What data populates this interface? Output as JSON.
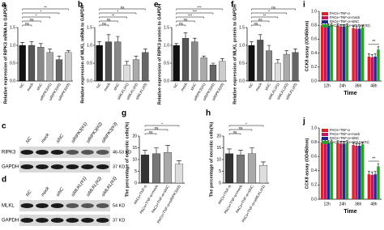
{
  "chart_data": [
    {
      "type": "bar",
      "panel": "a",
      "ylabel": "Relative expression of RIPK3 mRNA to GAPDH",
      "categories": [
        "NC",
        "mock",
        "siNC",
        "siRIPK3(#1)",
        "siRIPK3(#2)",
        "siRIPK3(#3)"
      ],
      "values": [
        1.0,
        1.0,
        0.95,
        0.8,
        0.6,
        0.8
      ],
      "errors": [
        0.08,
        0.1,
        0.1,
        0.1,
        0.1,
        0.05
      ],
      "colors": [
        "#111111",
        "#555555",
        "#888888",
        "#aaaaaa",
        "#666666",
        "#cccccc"
      ],
      "ylim": [
        0,
        1.5
      ],
      "yticks": [
        {
          "value": 0,
          "label": "0.0"
        },
        0.5,
        {
          "value": 1,
          "label": "1.0"
        },
        1.5
      ],
      "annotations": [
        "ns",
        "ns",
        "*",
        "*",
        "**"
      ]
    },
    {
      "type": "bar",
      "panel": "b",
      "ylabel": "Relative expression of MLKL mRNA to GAPDH",
      "categories": [
        "NC",
        "mock",
        "siNC",
        "siMLKL(#1)",
        "siMLKL(#2)",
        "siMLKL(#3)"
      ],
      "values": [
        1.0,
        1.1,
        1.1,
        0.45,
        0.6,
        0.8
      ],
      "errors": [
        0.1,
        0.2,
        0.15,
        0.1,
        0.1,
        0.1
      ],
      "colors": [
        "#111111",
        "#555555",
        "#888888",
        "#dddddd",
        "#aaaaaa",
        "#666666"
      ],
      "ylim": [
        0,
        1.5
      ],
      "yticks": [
        {
          "value": 0,
          "label": "0.0"
        },
        0.5,
        {
          "value": 1,
          "label": "1.0"
        },
        1.5
      ],
      "annotations": [
        "ns",
        "ns",
        "**",
        "*",
        "ns"
      ]
    },
    {
      "type": "bar",
      "panel": "e",
      "ylabel": "Relative expression of RIPK3 protein to GAPDH",
      "categories": [
        "NC",
        "mock",
        "siNC",
        "siRIPK3(#1)",
        "siRIPK3(#2)",
        "siRIPK3(#3)"
      ],
      "values": [
        1.0,
        1.2,
        1.1,
        0.65,
        0.45,
        0.55
      ],
      "errors": [
        0.05,
        0.15,
        0.1,
        0.05,
        0.05,
        0.08
      ],
      "colors": [
        "#111111",
        "#555555",
        "#888888",
        "#aaaaaa",
        "#666666",
        "#cccccc"
      ],
      "ylim": [
        0,
        1.5
      ],
      "yticks": [
        {
          "value": 0,
          "label": "0.0"
        },
        0.5,
        {
          "value": 1,
          "label": "1.0"
        },
        1.5
      ],
      "annotations": [
        "ns",
        "ns",
        "***",
        "***",
        "***"
      ]
    },
    {
      "type": "bar",
      "panel": "f",
      "ylabel": "Relative expression of MLKL protein to GAPDH",
      "categories": [
        "NC",
        "mock",
        "siNC",
        "siMLKL(#1)",
        "siMLKL(#2)",
        "siMLKL(#3)"
      ],
      "values": [
        1.0,
        1.15,
        0.85,
        0.5,
        0.75,
        0.8
      ],
      "errors": [
        0.1,
        0.15,
        0.15,
        0.1,
        0.1,
        0.1
      ],
      "colors": [
        "#111111",
        "#555555",
        "#888888",
        "#dddddd",
        "#aaaaaa",
        "#666666"
      ],
      "ylim": [
        0,
        1.5
      ],
      "yticks": [
        {
          "value": 0,
          "label": "0.0"
        },
        0.5,
        {
          "value": 1,
          "label": "1.0"
        },
        1.5
      ],
      "annotations": [
        "ns",
        "ns",
        "**",
        "*",
        "ns"
      ]
    },
    {
      "type": "bar",
      "panel": "i",
      "ylabel": "CCK8 assay (OD450nm)",
      "xlabel": "Time",
      "categories": [
        "12h",
        "24h",
        "36h",
        "48h"
      ],
      "series": [
        {
          "name": "PACs+TNF-α",
          "color": "#d62728",
          "values": [
            0.8,
            0.79,
            0.76,
            0.35
          ],
          "errors": [
            0.03,
            0.03,
            0.03,
            0.04
          ]
        },
        {
          "name": "PACs+TNF-α+mock",
          "color": "#c2185b",
          "values": [
            0.8,
            0.78,
            0.75,
            0.34
          ],
          "errors": [
            0.03,
            0.03,
            0.03,
            0.04
          ]
        },
        {
          "name": "PACs+TNF-α+siNC",
          "color": "#1f2a8c",
          "values": [
            0.79,
            0.78,
            0.75,
            0.35
          ],
          "errors": [
            0.03,
            0.03,
            0.03,
            0.04
          ]
        },
        {
          "name": "PACs+TNF-α+siRIPK3(#2)",
          "color": "#2ca02c",
          "values": [
            0.8,
            0.79,
            0.77,
            0.45
          ],
          "errors": [
            0.03,
            0.03,
            0.03,
            0.04
          ]
        }
      ],
      "ylim": [
        0,
        1.0
      ],
      "yticks": [
        {
          "value": 0,
          "label": "0.0"
        },
        0.2,
        0.4,
        0.6,
        0.8,
        {
          "value": 1,
          "label": "1.0"
        }
      ],
      "annotations": [
        "**"
      ]
    },
    {
      "type": "bar",
      "panel": "g",
      "ylabel": "The percentage of necrotic cells(%)",
      "categories": [
        "PACs+TNF-α",
        "PACs+TNF-α+mock",
        "PACs+TNF-α+siNC",
        "PACs+TNF-α+siRIPK3(#2)"
      ],
      "values": [
        12,
        12.5,
        13,
        8
      ],
      "errors": [
        2,
        2.5,
        3,
        1.5
      ],
      "colors": [
        "#333333",
        "#777777",
        "#aaaaaa",
        "#dddddd"
      ],
      "ylim": [
        0,
        20
      ],
      "yticks": [
        0,
        5,
        10,
        15,
        20
      ],
      "annotations": [
        "ns",
        "ns",
        "*"
      ]
    },
    {
      "type": "bar",
      "panel": "h",
      "ylabel": "The percentage of necrotic cells(%)",
      "categories": [
        "PACs+TNF-α",
        "PACs+TNF-α+mock",
        "PACs+TNF-α+siNC",
        "PACs+TNF-α+siMLKL(#1)"
      ],
      "values": [
        12.5,
        12,
        12.5,
        7.5
      ],
      "errors": [
        2,
        2,
        2.5,
        1.5
      ],
      "colors": [
        "#333333",
        "#777777",
        "#aaaaaa",
        "#dddddd"
      ],
      "ylim": [
        0,
        20
      ],
      "yticks": [
        0,
        5,
        10,
        15,
        20
      ],
      "annotations": [
        "ns",
        "ns",
        "*"
      ]
    },
    {
      "type": "bar",
      "panel": "j",
      "ylabel": "CCK8 assay (OD450nm)",
      "xlabel": "Time",
      "categories": [
        "12h",
        "24h",
        "36h",
        "48h"
      ],
      "series": [
        {
          "name": "PACs+TNF-α",
          "color": "#d62728",
          "values": [
            0.8,
            0.79,
            0.76,
            0.35
          ],
          "errors": [
            0.03,
            0.03,
            0.03,
            0.04
          ]
        },
        {
          "name": "PACs+TNF-α+mock",
          "color": "#c2185b",
          "values": [
            0.8,
            0.78,
            0.75,
            0.34
          ],
          "errors": [
            0.03,
            0.03,
            0.03,
            0.04
          ]
        },
        {
          "name": "PACs+TNF-α+siNC",
          "color": "#1f2a8c",
          "values": [
            0.79,
            0.78,
            0.75,
            0.35
          ],
          "errors": [
            0.03,
            0.03,
            0.03,
            0.04
          ]
        },
        {
          "name": "PACs+TNF-α+siMLKL(#1)",
          "color": "#2ca02c",
          "values": [
            0.8,
            0.79,
            0.77,
            0.46
          ],
          "errors": [
            0.03,
            0.03,
            0.03,
            0.04
          ]
        }
      ],
      "ylim": [
        0,
        1.0
      ],
      "yticks": [
        {
          "value": 0,
          "label": "0.0"
        },
        0.2,
        0.4,
        0.6,
        0.8,
        {
          "value": 1,
          "label": "1.0"
        }
      ],
      "annotations": [
        "**"
      ]
    }
  ],
  "blots": [
    {
      "panel": "c",
      "lanes": [
        "NC",
        "mock",
        "siNC",
        "siRIPK3(#1)",
        "siRIPK3(#2)",
        "siRIPK3(#3)"
      ],
      "rows": [
        {
          "protein": "RIPK3",
          "size": "46-53 KD"
        },
        {
          "protein": "GAPDH",
          "size": "37 KD"
        }
      ]
    },
    {
      "panel": "d",
      "lanes": [
        "NC",
        "mock",
        "siNC",
        "siMLKL(#1)",
        "siMLKL(#2)",
        "siMLKL(#3)"
      ],
      "rows": [
        {
          "protein": "MLKL",
          "size": "54 KD"
        },
        {
          "protein": "GAPDH",
          "size": "37 KD"
        }
      ]
    }
  ]
}
